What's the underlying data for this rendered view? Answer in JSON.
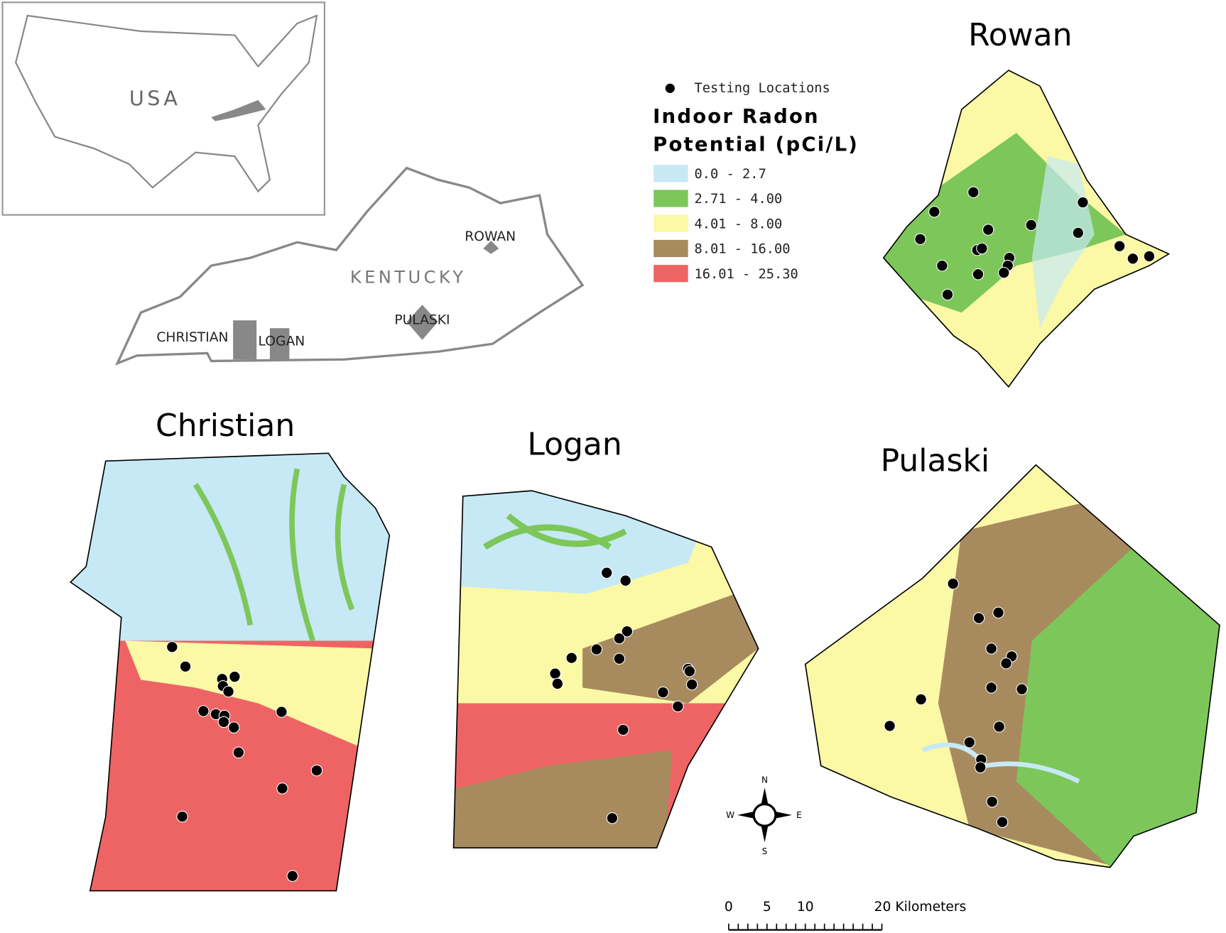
{
  "inset": {
    "usa_label": "USA",
    "state_label": "KENTUCKY",
    "county_labels": [
      "ROWAN",
      "PULASKI",
      "CHRISTIAN",
      "LOGAN"
    ]
  },
  "legend": {
    "points_label": "Testing Locations",
    "title_line1": "Indoor Radon",
    "title_line2": "Potential (pCi/L)",
    "classes": [
      {
        "label": "0.0 - 2.7",
        "color": "#c6e9f5"
      },
      {
        "label": "2.71 - 4.00",
        "color": "#7dc75a"
      },
      {
        "label": "4.01 - 8.00",
        "color": "#fbf8a6"
      },
      {
        "label": "8.01 - 16.00",
        "color": "#a78b5f"
      },
      {
        "label": "16.01 - 25.30",
        "color": "#ee6464"
      }
    ]
  },
  "maps": {
    "rowan": "Rowan",
    "christian": "Christian",
    "logan": "Logan",
    "pulaski": "Pulaski"
  },
  "compass": {
    "n": "N",
    "s": "S",
    "e": "E",
    "w": "W"
  },
  "scale_bar": {
    "labels": [
      "0",
      "5",
      "10",
      "20 Kilometers"
    ]
  }
}
